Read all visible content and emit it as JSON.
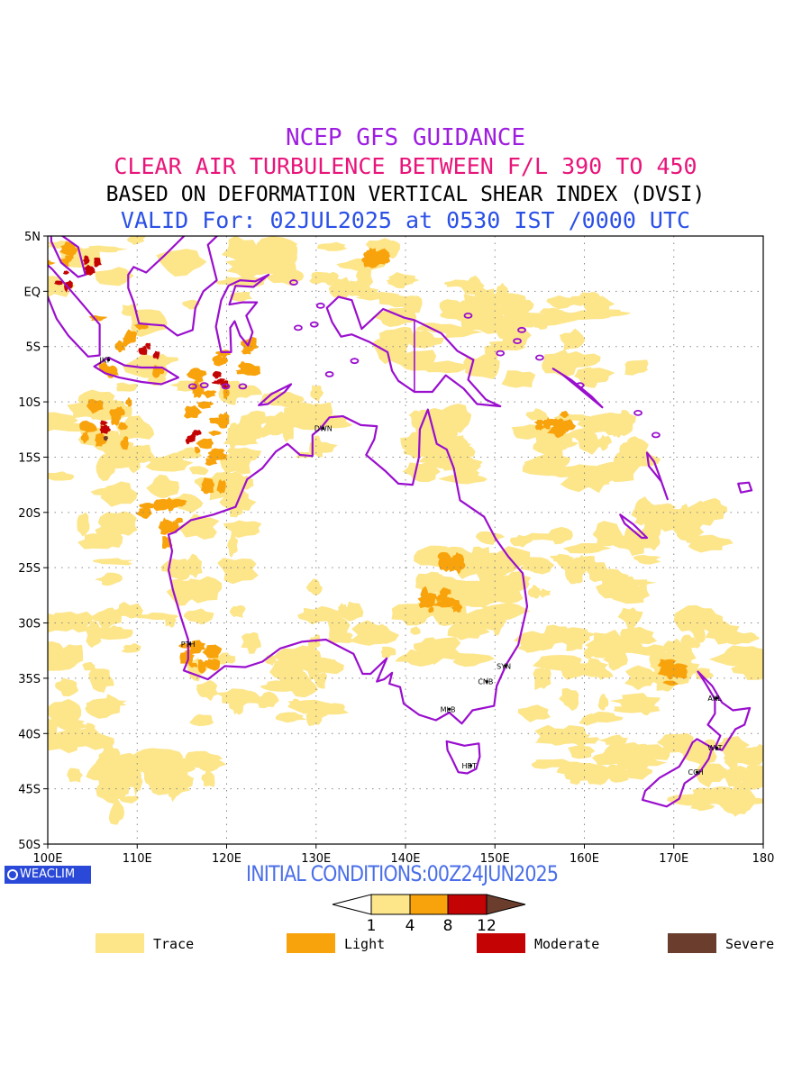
{
  "titles": {
    "line1": "NCEP GFS GUIDANCE",
    "line2": "CLEAR AIR TURBULENCE BETWEEN F/L 390 TO 450",
    "line3": "BASED ON DEFORMATION VERTICAL SHEAR INDEX (DVSI)",
    "line4": "VALID For: 02JUL2025 at 0530 IST /0000 UTC"
  },
  "colors": {
    "line1": "#9e1ee0",
    "line2": "#e8157a",
    "line3": "#000000",
    "line4": "#2b50e6",
    "init": "#4a6ee8",
    "coast": "#9a0fce",
    "trace": "#fde58a",
    "light": "#f8a30c",
    "moderate": "#c40404",
    "severe": "#6b3d2d"
  },
  "map": {
    "lat_labels": [
      "5N",
      "EQ",
      "5S",
      "10S",
      "15S",
      "20S",
      "25S",
      "30S",
      "35S",
      "40S",
      "45S",
      "50S"
    ],
    "lon_labels": [
      "100E",
      "110E",
      "120E",
      "130E",
      "140E",
      "150E",
      "160E",
      "170E",
      "180"
    ],
    "lat_range": [
      -50,
      5
    ],
    "lon_range": [
      100,
      180
    ],
    "stations": [
      {
        "code": "JKT",
        "lon": 106.8,
        "lat": -6.2
      },
      {
        "code": "DWN",
        "lon": 130.8,
        "lat": -12.4
      },
      {
        "code": "PTH",
        "lon": 115.9,
        "lat": -31.9
      },
      {
        "code": "SYN",
        "lon": 151.2,
        "lat": -33.9
      },
      {
        "code": "CNB",
        "lon": 149.1,
        "lat": -35.3
      },
      {
        "code": "MLB",
        "lon": 144.9,
        "lat": -37.8
      },
      {
        "code": "HBT",
        "lon": 147.3,
        "lat": -42.9
      },
      {
        "code": "AKL",
        "lon": 174.8,
        "lat": -36.8
      },
      {
        "code": "WLT",
        "lon": 174.8,
        "lat": -41.3
      },
      {
        "code": "CCH",
        "lon": 172.6,
        "lat": -43.5
      }
    ]
  },
  "branding": {
    "badge": "WEACLIM"
  },
  "init_text": "INITIAL CONDITIONS:00Z24JUN2025",
  "colorbar": {
    "ticks": [
      "1",
      "4",
      "8",
      "12"
    ]
  },
  "legend": [
    {
      "label": "Trace",
      "color_key": "trace"
    },
    {
      "label": "Light",
      "color_key": "light"
    },
    {
      "label": "Moderate",
      "color_key": "moderate"
    },
    {
      "label": "Severe",
      "color_key": "severe"
    }
  ]
}
